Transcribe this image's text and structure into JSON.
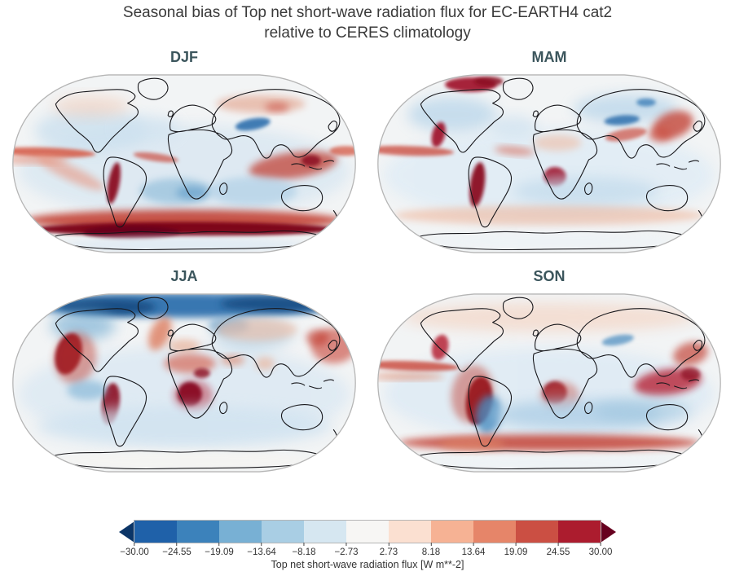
{
  "figure": {
    "title": "Seasonal bias of Top net short-wave radiation flux for EC-EARTH4 cat2 relative to CERES climatology",
    "title_line1": "Seasonal bias of Top net short-wave radiation flux for EC-EARTH4 cat2",
    "title_line2": "relative to CERES climatology"
  },
  "panels": [
    {
      "id": "djf",
      "label": "DJF"
    },
    {
      "id": "mam",
      "label": "MAM"
    },
    {
      "id": "jja",
      "label": "JJA"
    },
    {
      "id": "son",
      "label": "SON"
    }
  ],
  "colorbar": {
    "label": "Top net short-wave radiation flux [W m**-2]",
    "ticks": [
      "−30.00",
      "−24.55",
      "−19.09",
      "−13.64",
      "−8.18",
      "−2.73",
      "2.73",
      "8.18",
      "13.64",
      "19.09",
      "24.55",
      "30.00"
    ],
    "under_color": "#0b3567",
    "over_color": "#67001f",
    "segment_colors": [
      "#1f61a9",
      "#3c82bb",
      "#78b0d4",
      "#a9cee4",
      "#d6e7f1",
      "#f7f6f4",
      "#fbe0d1",
      "#f6b294",
      "#e68569",
      "#cb4f43",
      "#ac1c2e"
    ]
  },
  "chart_data": {
    "type": "heatmap",
    "subtype": "filled-contour global bias maps",
    "projection": "Robinson",
    "panel_layout": "2x2",
    "n_panels": 4,
    "seasons": [
      "DJF",
      "MAM",
      "JJA",
      "SON"
    ],
    "variable": "Top net short-wave radiation flux",
    "units": "W m**-2",
    "model": "EC-EARTH4 cat2",
    "reference": "CERES climatology",
    "colormap": "RdBu_r (blue = negative bias, red = positive bias)",
    "contour_levels": [
      -30.0,
      -24.55,
      -19.09,
      -13.64,
      -8.18,
      -2.73,
      2.73,
      8.18,
      13.64,
      19.09,
      24.55,
      30.0
    ],
    "extend": "both",
    "value_range_shown": [
      -30.0,
      30.0
    ],
    "notable_features": {
      "DJF": [
        "Very strong positive bias (> +30 W m**-2, dark red) in a band over the Southern Ocean along the Antarctic coast (~60-70S)",
        "Positive bias band along the equatorial Pacific / ITCZ and equatorial Atlantic",
        "Strong positive bias along the Peru-Chile coastal stratocumulus region",
        "Positive bias over the Maritime Continent and southern tropical Indian Ocean",
        "Negative bias (blue) over the Tibetan Plateau",
        "Weak negative bias over most subtropical ocean basins",
        "Weak positive bias over Siberia and northern mid-latitude land"
      ],
      "MAM": [
        "Strong positive bias over the Canadian Arctic Archipelago",
        "Strong positive bias along the California, Peru and Namibia coastal stratocumulus regions",
        "Positive bias over East Asia / Japan and along the south flank of the Himalayas",
        "Negative bias patches (< -19 W m**-2) over boreal North America and Siberia",
        "Positive bias band along the equatorial Pacific",
        "Weak positive bias band over Southern Ocean mid-latitudes; weak negative bias over subtropical oceans"
      ],
      "JJA": [
        "Strong negative bias (< -19 W m**-2, dark blue) across the Arctic and high northern latitudes",
        "Very strong positive bias (> +30 W m**-2) in the California, Peru and Namibia stratocumulus regions",
        "Positive bias over the Sahara/Sahel and the subtropical North Atlantic near Iberia",
        "Positive bias over the northwest Pacific / Japan and central Asia",
        "Weak negative bias over the southern subtropical oceans",
        "Near-zero bias over Antarctica (polar night)"
      ],
      "SON": [
        "Very strong positive bias off Peru and Namibia (coastal stratocumulus regions)",
        "Positive bias over the Maritime Continent and equatorial Pacific bands",
        "Positive bias band over the Southern Ocean (~55-60S)",
        "Negative bias over interior South America (Andes/Argentina)",
        "Weak negative bias over southern subtropical oceans, weak positive bias over northern continents"
      ]
    }
  }
}
